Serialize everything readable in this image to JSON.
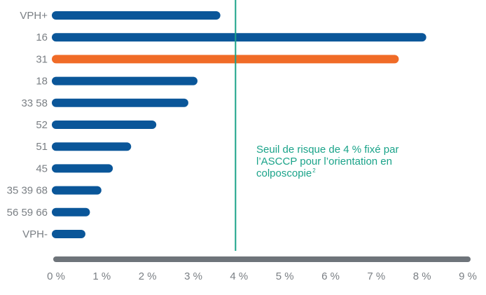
{
  "chart_data": {
    "type": "bar",
    "orientation": "horizontal",
    "categories": [
      "VPH+",
      "16",
      "31",
      "18",
      "33 58",
      "52",
      "51",
      "45",
      "35 39 68",
      "56 59 66",
      "VPH-"
    ],
    "values": [
      3.5,
      8.0,
      7.4,
      3.0,
      2.8,
      2.1,
      1.55,
      1.15,
      0.9,
      0.65,
      0.55
    ],
    "highlight_category": "31",
    "x_ticks": [
      0,
      1,
      2,
      3,
      4,
      5,
      6,
      7,
      8,
      9
    ],
    "x_tick_labels": [
      "0 %",
      "1 %",
      "2 %",
      "3 %",
      "4 %",
      "5 %",
      "6 %",
      "7 %",
      "8 %",
      "9 %"
    ],
    "xlim": [
      0,
      9
    ],
    "threshold": {
      "value": 4,
      "label_lines": [
        "Seuil de risque de 4 % fixé par",
        "l’ASCCP pour l’orientation en",
        "colposcopie"
      ],
      "superscript": "2"
    },
    "colors": {
      "bar": "#0a5699",
      "highlight": "#f06b27",
      "threshold": "#1aa389",
      "axis": "#6e747a",
      "label": "#7a7f84"
    }
  }
}
